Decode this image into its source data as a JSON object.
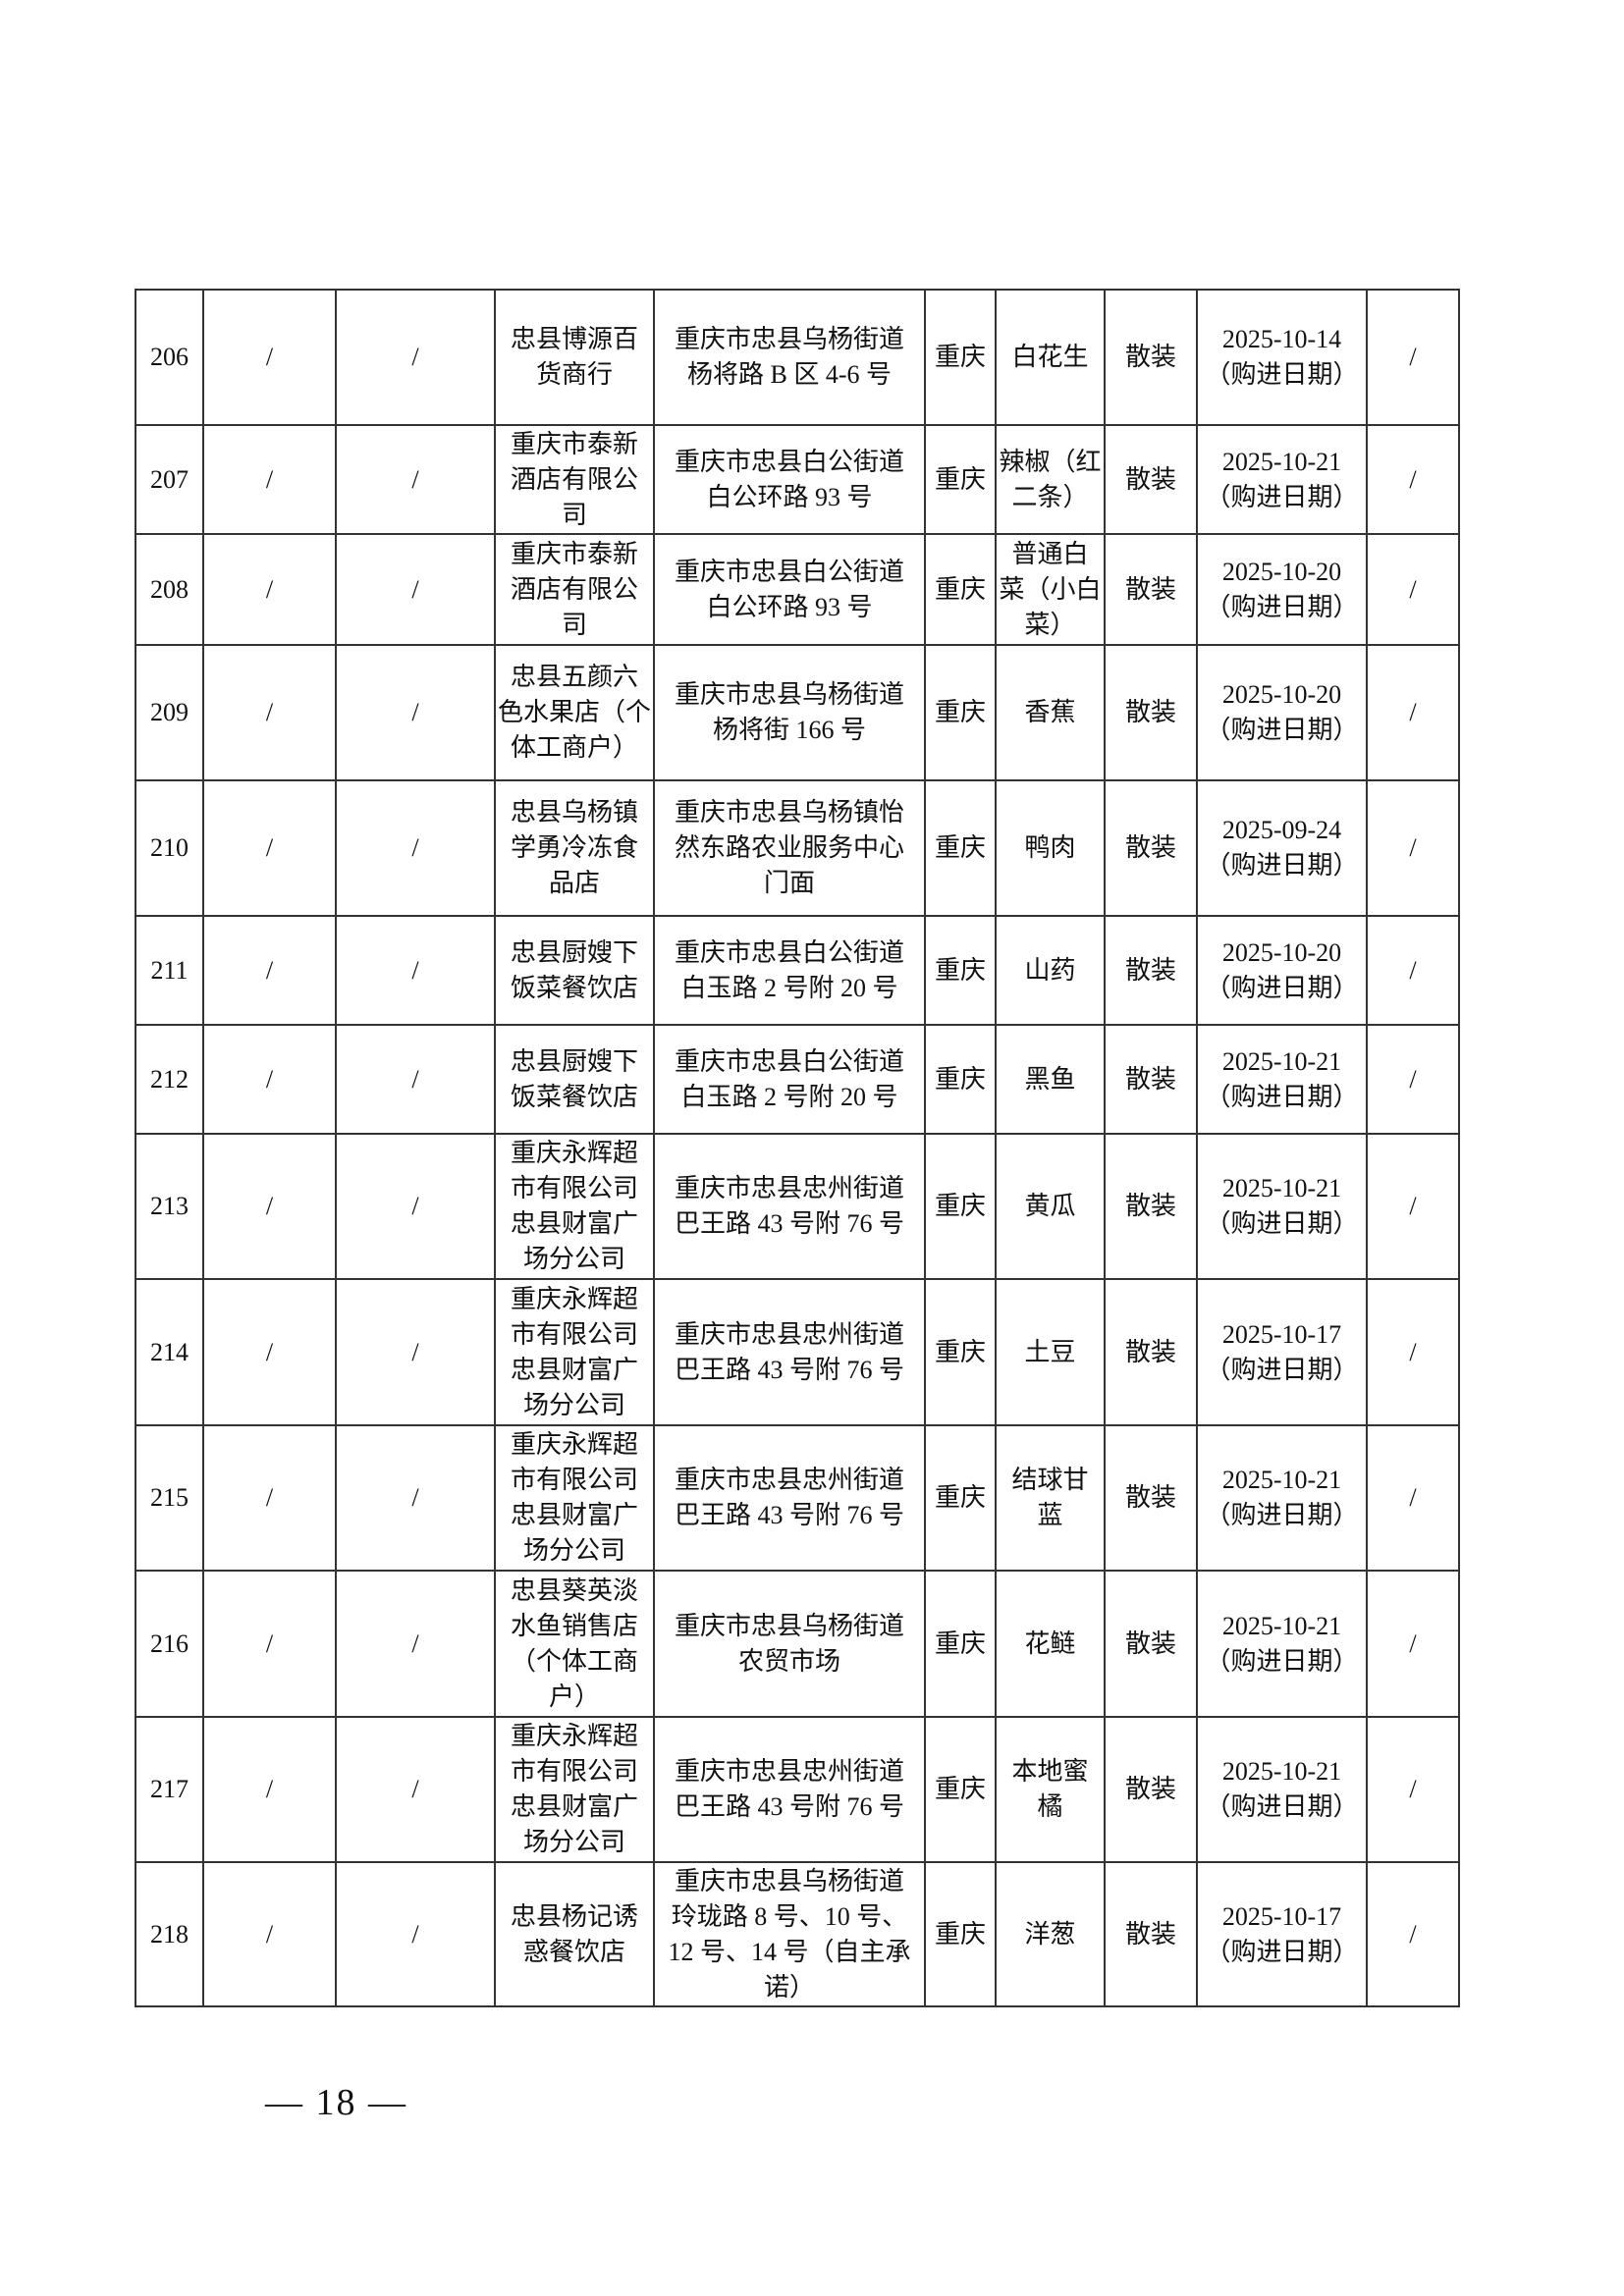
{
  "rows": [
    {
      "no": "206",
      "c2": "/",
      "c3": "/",
      "store": "忠县博源百\n货商行",
      "addr": "重庆市忠县乌杨街道\n杨将路 B 区 4-6 号",
      "origin": "重庆",
      "product": "白花生",
      "pack": "散装",
      "date": "2025-10-14\n（购进日期）",
      "last": "/"
    },
    {
      "no": "207",
      "c2": "/",
      "c3": "/",
      "store": "重庆市泰新\n酒店有限公\n司",
      "addr": "重庆市忠县白公街道\n白公环路 93 号",
      "origin": "重庆",
      "product": "辣椒（红\n二条）",
      "pack": "散装",
      "date": "2025-10-21\n（购进日期）",
      "last": "/"
    },
    {
      "no": "208",
      "c2": "/",
      "c3": "/",
      "store": "重庆市泰新\n酒店有限公\n司",
      "addr": "重庆市忠县白公街道\n白公环路 93 号",
      "origin": "重庆",
      "product": "普通白\n菜（小白\n菜）",
      "pack": "散装",
      "date": "2025-10-20\n（购进日期）",
      "last": "/"
    },
    {
      "no": "209",
      "c2": "/",
      "c3": "/",
      "store": "忠县五颜六\n色水果店（个\n体工商户）",
      "addr": "重庆市忠县乌杨街道\n杨将街 166 号",
      "origin": "重庆",
      "product": "香蕉",
      "pack": "散装",
      "date": "2025-10-20\n（购进日期）",
      "last": "/"
    },
    {
      "no": "210",
      "c2": "/",
      "c3": "/",
      "store": "忠县乌杨镇\n学勇冷冻食\n品店",
      "addr": "重庆市忠县乌杨镇怡\n然东路农业服务中心\n门面",
      "origin": "重庆",
      "product": "鸭肉",
      "pack": "散装",
      "date": "2025-09-24\n（购进日期）",
      "last": "/"
    },
    {
      "no": "211",
      "c2": "/",
      "c3": "/",
      "store": "忠县厨嫂下\n饭菜餐饮店",
      "addr": "重庆市忠县白公街道\n白玉路 2 号附 20 号",
      "origin": "重庆",
      "product": "山药",
      "pack": "散装",
      "date": "2025-10-20\n（购进日期）",
      "last": "/"
    },
    {
      "no": "212",
      "c2": "/",
      "c3": "/",
      "store": "忠县厨嫂下\n饭菜餐饮店",
      "addr": "重庆市忠县白公街道\n白玉路 2 号附 20 号",
      "origin": "重庆",
      "product": "黑鱼",
      "pack": "散装",
      "date": "2025-10-21\n（购进日期）",
      "last": "/"
    },
    {
      "no": "213",
      "c2": "/",
      "c3": "/",
      "store": "重庆永辉超\n市有限公司\n忠县财富广\n场分公司",
      "addr": "重庆市忠县忠州街道\n巴王路 43 号附 76 号",
      "origin": "重庆",
      "product": "黄瓜",
      "pack": "散装",
      "date": "2025-10-21\n（购进日期）",
      "last": "/"
    },
    {
      "no": "214",
      "c2": "/",
      "c3": "/",
      "store": "重庆永辉超\n市有限公司\n忠县财富广\n场分公司",
      "addr": "重庆市忠县忠州街道\n巴王路 43 号附 76 号",
      "origin": "重庆",
      "product": "土豆",
      "pack": "散装",
      "date": "2025-10-17\n（购进日期）",
      "last": "/"
    },
    {
      "no": "215",
      "c2": "/",
      "c3": "/",
      "store": "重庆永辉超\n市有限公司\n忠县财富广\n场分公司",
      "addr": "重庆市忠县忠州街道\n巴王路 43 号附 76 号",
      "origin": "重庆",
      "product": "结球甘\n蓝",
      "pack": "散装",
      "date": "2025-10-21\n（购进日期）",
      "last": "/"
    },
    {
      "no": "216",
      "c2": "/",
      "c3": "/",
      "store": "忠县葵英淡\n水鱼销售店\n（个体工商\n户）",
      "addr": "重庆市忠县乌杨街道\n农贸市场",
      "origin": "重庆",
      "product": "花鲢",
      "pack": "散装",
      "date": "2025-10-21\n（购进日期）",
      "last": "/"
    },
    {
      "no": "217",
      "c2": "/",
      "c3": "/",
      "store": "重庆永辉超\n市有限公司\n忠县财富广\n场分公司",
      "addr": "重庆市忠县忠州街道\n巴王路 43 号附 76 号",
      "origin": "重庆",
      "product": "本地蜜\n橘",
      "pack": "散装",
      "date": "2025-10-21\n（购进日期）",
      "last": "/"
    },
    {
      "no": "218",
      "c2": "/",
      "c3": "/",
      "store": "忠县杨记诱\n惑餐饮店",
      "addr": "重庆市忠县乌杨街道\n玲珑路 8 号、10 号、\n12 号、14 号（自主承\n诺）",
      "origin": "重庆",
      "product": "洋葱",
      "pack": "散装",
      "date": "2025-10-17\n（购进日期）",
      "last": "/"
    }
  ],
  "page_number": "— 18 —"
}
